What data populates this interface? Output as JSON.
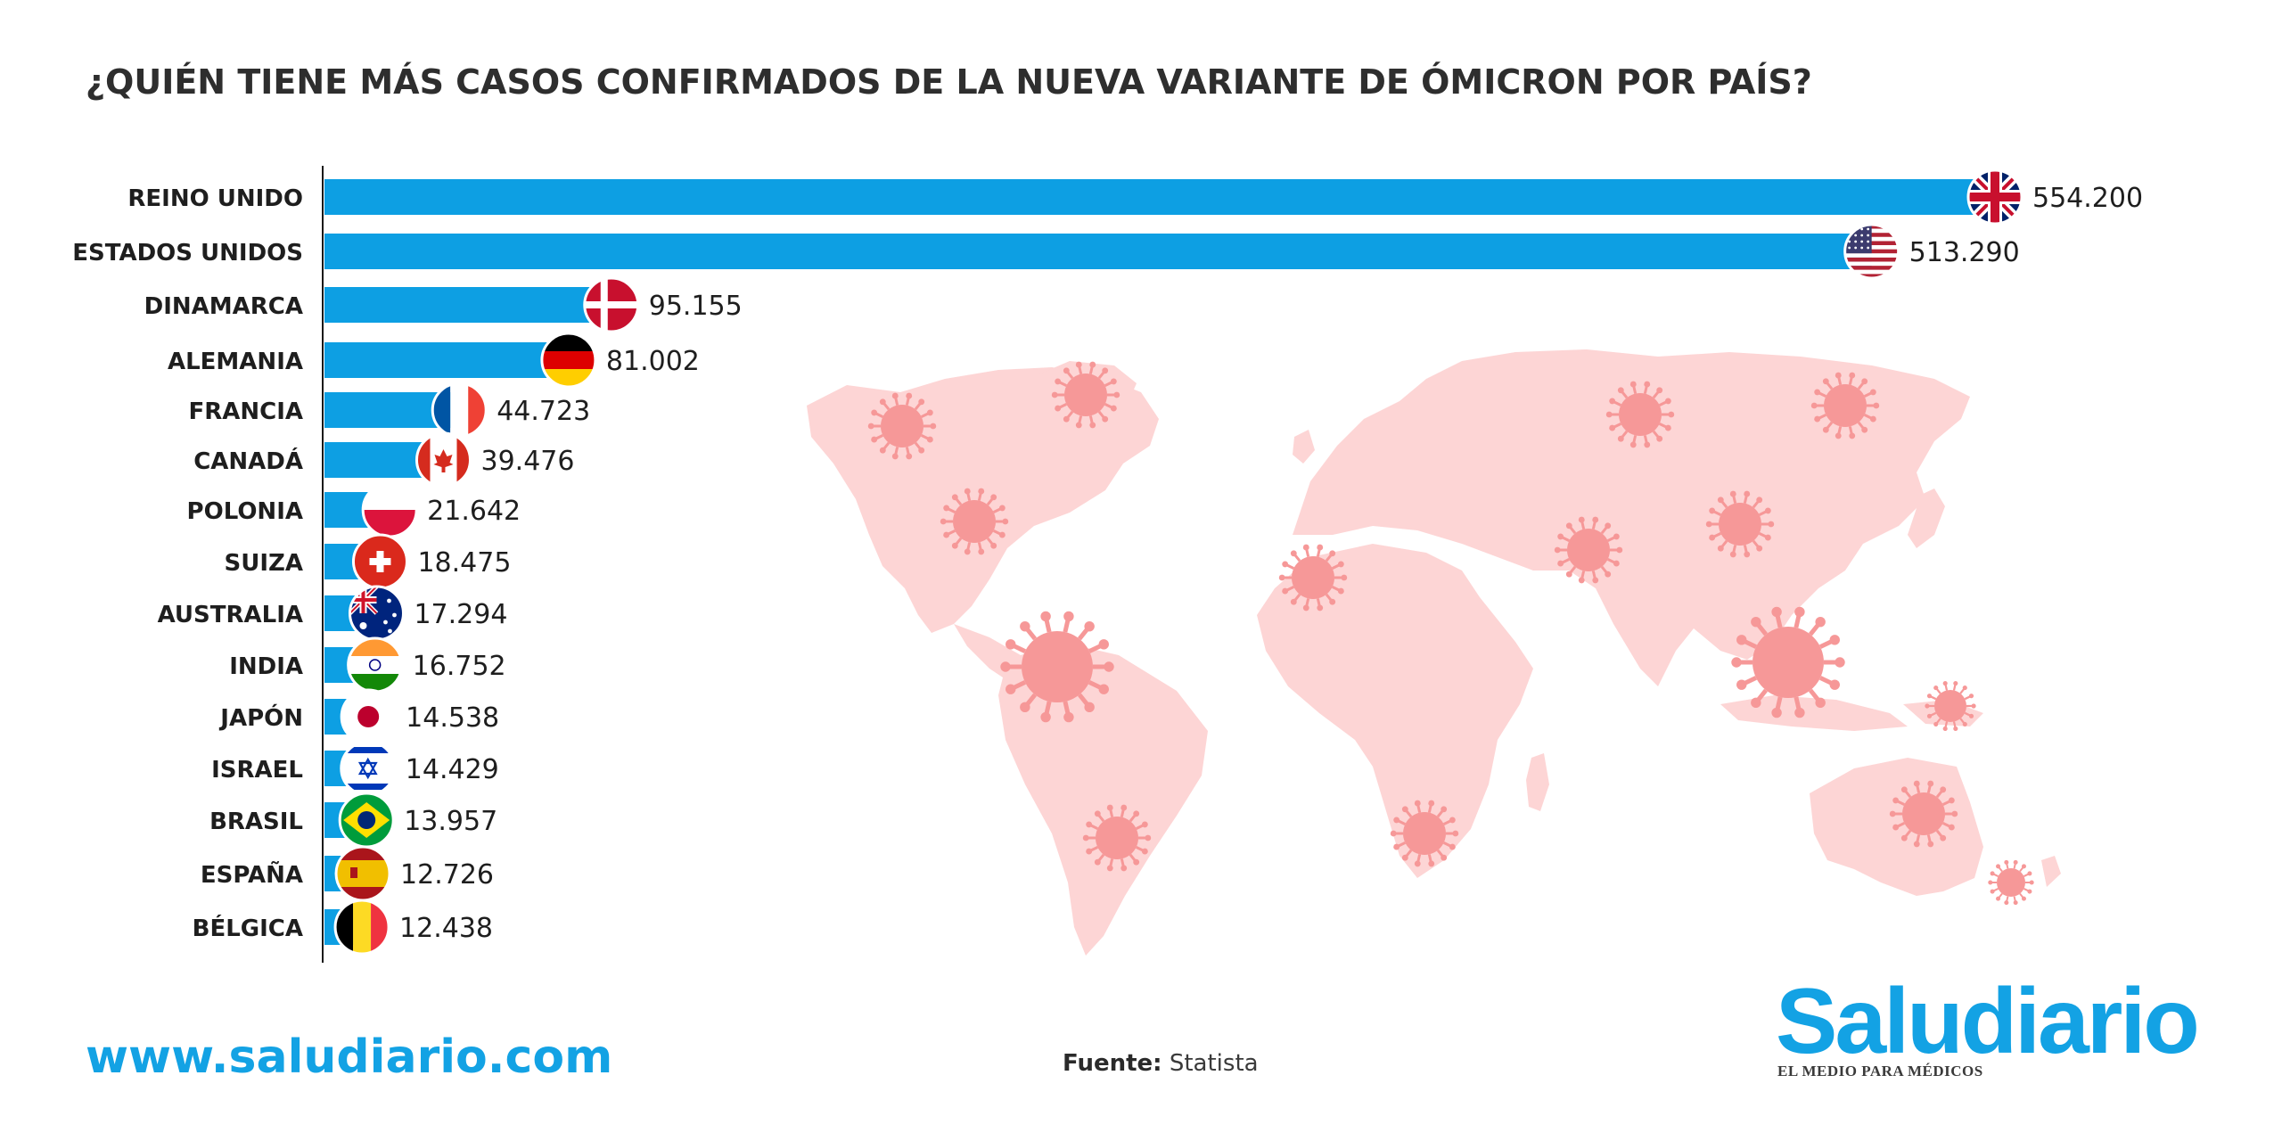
{
  "title": "¿QUIÉN TIENE MÁS CASOS CONFIRMADOS DE LA NUEVA VARIANTE DE ÓMICRON POR PAÍS?",
  "website": "www.saludiario.com",
  "source": {
    "label": "Fuente:",
    "value": "Statista"
  },
  "brand": {
    "name": "Saludiario",
    "tagline": "EL MEDIO PARA MÉDICOS"
  },
  "colors": {
    "bar": "#0d9fe3",
    "map": "#fdd5d5",
    "virus": "#f69898",
    "text": "#1e1e1e",
    "brand": "#13a2e4"
  },
  "icons": {
    "virus": "virus-icon",
    "flags": "flag-icon"
  },
  "chart_data": {
    "type": "bar",
    "orientation": "horizontal",
    "title": "¿QUIÉN TIENE MÁS CASOS CONFIRMADOS DE LA NUEVA VARIANTE DE ÓMICRON POR PAÍS?",
    "xlabel": "",
    "ylabel": "",
    "grid": false,
    "categories": [
      "REINO UNIDO",
      "ESTADOS UNIDOS",
      "DINAMARCA",
      "ALEMANIA",
      "FRANCIA",
      "CANADÁ",
      "POLONIA",
      "SUIZA",
      "AUSTRALIA",
      "INDIA",
      "JAPÓN",
      "ISRAEL",
      "BRASIL",
      "ESPAÑA",
      "BÉLGICA"
    ],
    "values": [
      554200,
      513290,
      95155,
      81002,
      44723,
      39476,
      21642,
      18475,
      17294,
      16752,
      14538,
      14429,
      13957,
      12726,
      12438
    ],
    "value_labels": [
      "554.200",
      "513.290",
      "95.155",
      "81.002",
      "44.723",
      "39.476",
      "21.642",
      "18.475",
      "17.294",
      "16.752",
      "14.538",
      "14.429",
      "13.957",
      "12.726",
      "12.438"
    ],
    "xlim": [
      0,
      554200
    ]
  }
}
